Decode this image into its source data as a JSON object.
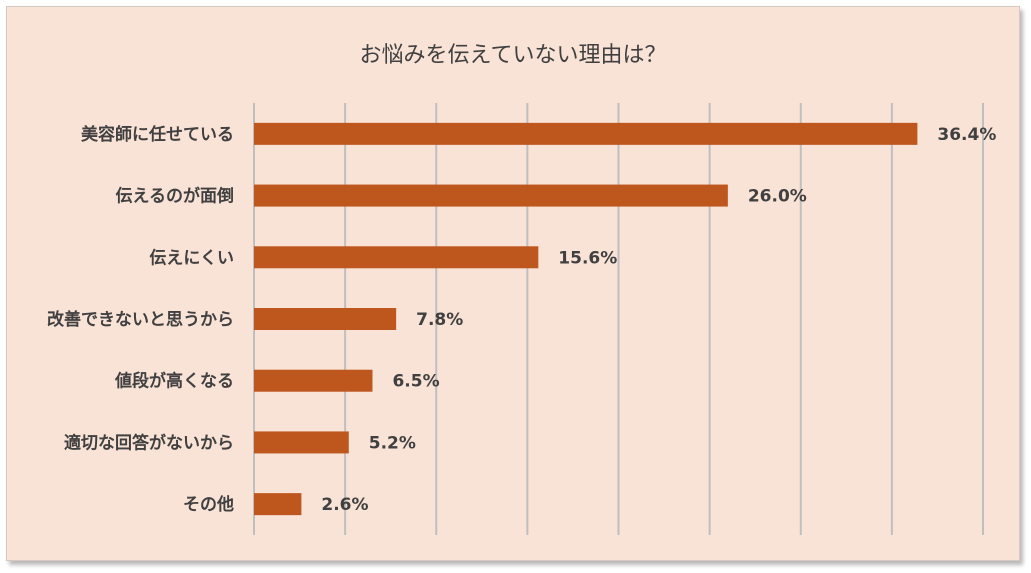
{
  "chart_data": {
    "type": "bar",
    "orientation": "horizontal",
    "title": "お悩みを伝えていない理由は？",
    "categories": [
      "美容師に任せている",
      "伝えるのが面倒",
      "伝えにくい",
      "改善できないと思うから",
      "値段が高くなる",
      "適切な回答がないから",
      "その他"
    ],
    "values": [
      36.4,
      26.0,
      15.6,
      7.8,
      6.5,
      5.2,
      2.6
    ],
    "value_labels": [
      "36.4%",
      "26.0%",
      "15.6%",
      "7.8%",
      "6.5%",
      "5.2%",
      "2.6%"
    ],
    "xlim": [
      0,
      40
    ],
    "grid": true,
    "legend": false,
    "colors": {
      "bar": "#bd571e",
      "grid": "#bfbfbf",
      "background": "#f9e2d6",
      "text": "#404040"
    }
  }
}
